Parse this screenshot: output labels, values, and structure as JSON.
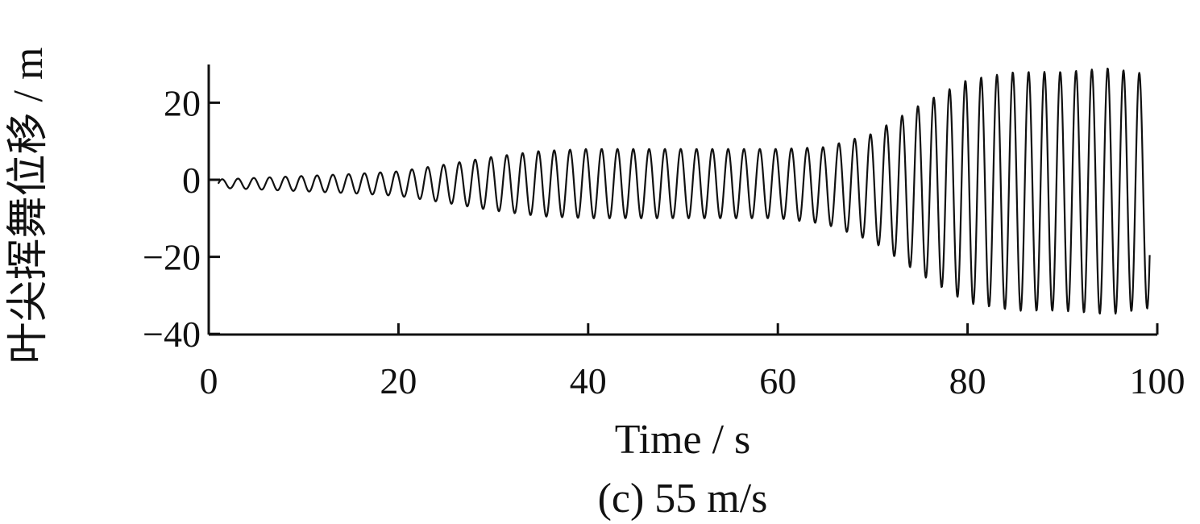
{
  "chart_data": {
    "type": "line",
    "caption": "(c) 55 m/s",
    "xlabel": "Time / s",
    "ylabel": "叶尖挥舞位移 / m",
    "xlim": [
      0,
      100
    ],
    "ylim": [
      -40,
      30
    ],
    "xticks": [
      0,
      20,
      40,
      60,
      80,
      100
    ],
    "xtick_labels": [
      "0",
      "20",
      "40",
      "60",
      "80",
      "100"
    ],
    "yticks": [
      -40,
      -20,
      0,
      20
    ],
    "ytick_labels": [
      "−40",
      "−20",
      "0",
      "20"
    ],
    "grid": false,
    "series": [
      {
        "name": "",
        "color": "#111111",
        "oscillation_period_s": 1.667,
        "mean_offset_envelope": {
          "t": [
            0,
            10,
            20,
            30,
            40,
            50,
            60,
            70,
            80,
            100
          ],
          "offset": [
            -1,
            -1,
            -1,
            -1,
            -1,
            -1,
            -1,
            -2,
            -3,
            -3
          ]
        },
        "amplitude_envelope": {
          "t": [
            0,
            5,
            10,
            15,
            20,
            25,
            30,
            35,
            40,
            50,
            60,
            65,
            70,
            75,
            80,
            85,
            90,
            95,
            100
          ],
          "amplitude": [
            1.0,
            1.5,
            2.0,
            2.5,
            3.2,
            5.0,
            7.0,
            8.5,
            9.0,
            9.0,
            9.0,
            10.0,
            14.0,
            22.0,
            29.0,
            31.0,
            31.0,
            32.0,
            30.0
          ]
        }
      }
    ]
  }
}
